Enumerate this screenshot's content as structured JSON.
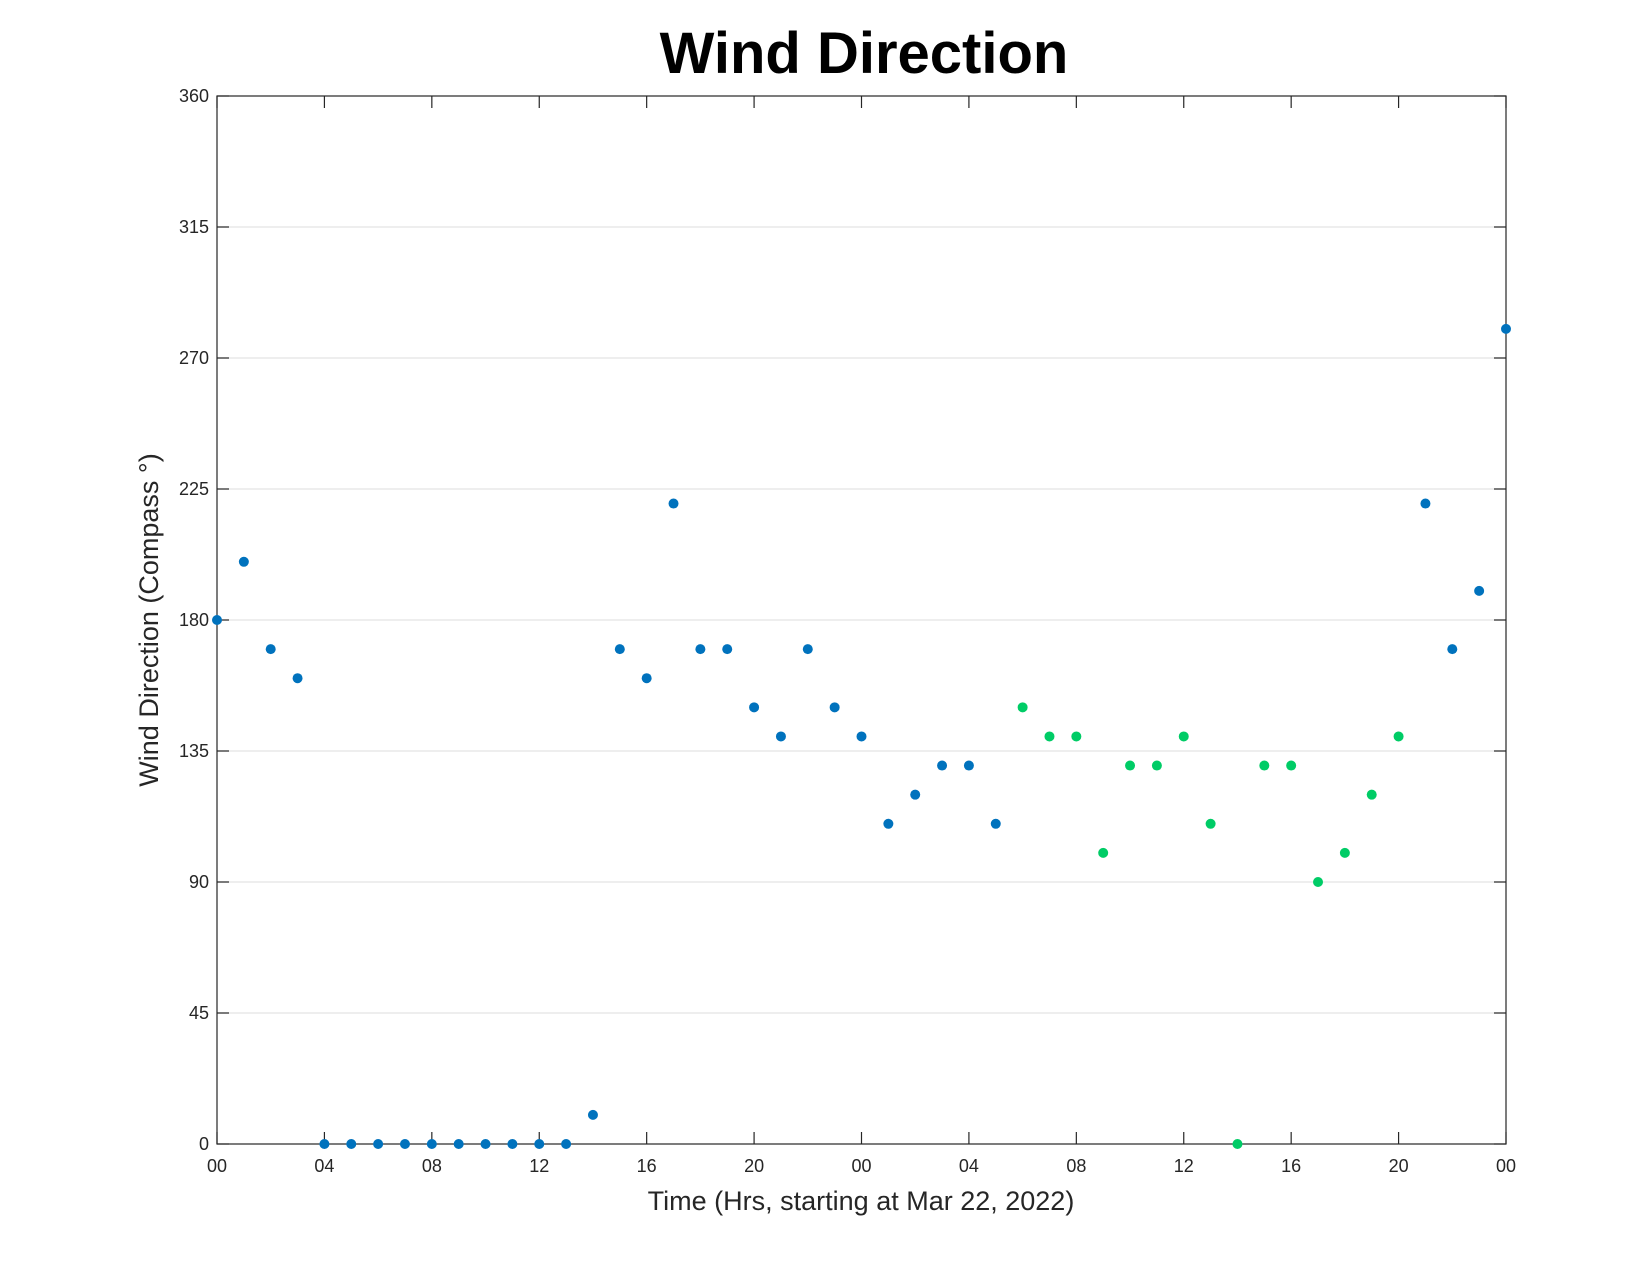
{
  "chart_data": {
    "type": "scatter",
    "title": "Wind Direction",
    "xlabel": "Time (Hrs, starting at Mar 22, 2022)",
    "ylabel": "Wind Direction (Compass °)",
    "xlim": [
      0,
      48
    ],
    "ylim": [
      0,
      360
    ],
    "y_ticks": [
      0,
      45,
      90,
      135,
      180,
      225,
      270,
      315,
      360
    ],
    "x_ticks": [
      {
        "x": 0,
        "label": "00"
      },
      {
        "x": 4,
        "label": "04"
      },
      {
        "x": 8,
        "label": "08"
      },
      {
        "x": 12,
        "label": "12"
      },
      {
        "x": 16,
        "label": "16"
      },
      {
        "x": 20,
        "label": "20"
      },
      {
        "x": 24,
        "label": "00"
      },
      {
        "x": 28,
        "label": "04"
      },
      {
        "x": 32,
        "label": "08"
      },
      {
        "x": 36,
        "label": "12"
      },
      {
        "x": 40,
        "label": "16"
      },
      {
        "x": 44,
        "label": "20"
      },
      {
        "x": 48,
        "label": "00"
      }
    ],
    "grid": true,
    "series": [
      {
        "color": "#0072BD",
        "points": [
          [
            0,
            180
          ],
          [
            1,
            200
          ],
          [
            2,
            170
          ],
          [
            3,
            160
          ],
          [
            4,
            0
          ],
          [
            5,
            0
          ],
          [
            6,
            0
          ],
          [
            7,
            0
          ],
          [
            8,
            0
          ],
          [
            9,
            0
          ],
          [
            10,
            0
          ],
          [
            11,
            0
          ],
          [
            12,
            0
          ],
          [
            13,
            0
          ],
          [
            14,
            10
          ],
          [
            15,
            170
          ],
          [
            16,
            160
          ],
          [
            17,
            220
          ],
          [
            18,
            170
          ],
          [
            19,
            170
          ],
          [
            20,
            150
          ],
          [
            21,
            140
          ],
          [
            22,
            170
          ],
          [
            23,
            150
          ],
          [
            24,
            140
          ],
          [
            25,
            110
          ],
          [
            26,
            120
          ],
          [
            27,
            130
          ],
          [
            28,
            130
          ],
          [
            29,
            110
          ],
          [
            45,
            220
          ],
          [
            46,
            170
          ],
          [
            47,
            190
          ],
          [
            48,
            280
          ]
        ]
      },
      {
        "color": "#00CC66",
        "points": [
          [
            30,
            150
          ],
          [
            31,
            140
          ],
          [
            32,
            140
          ],
          [
            33,
            100
          ],
          [
            34,
            130
          ],
          [
            35,
            130
          ],
          [
            36,
            140
          ],
          [
            37,
            110
          ],
          [
            38,
            0
          ],
          [
            39,
            130
          ],
          [
            40,
            130
          ],
          [
            41,
            90
          ],
          [
            42,
            100
          ],
          [
            43,
            120
          ],
          [
            44,
            140
          ]
        ]
      }
    ]
  }
}
